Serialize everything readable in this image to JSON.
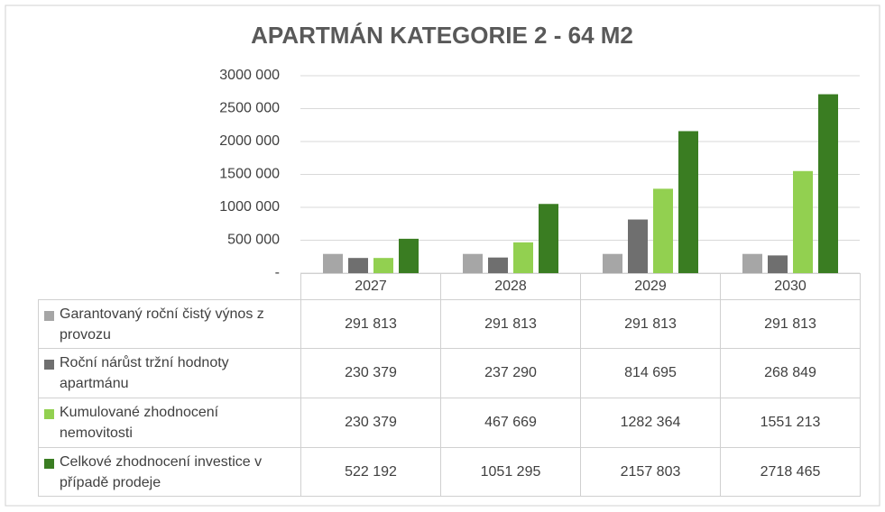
{
  "chart_data": {
    "type": "bar",
    "title": "APARTMÁN KATEGORIE 2 - 64 M2",
    "categories": [
      "2027",
      "2028",
      "2029",
      "2030"
    ],
    "ylim": [
      0,
      3000000
    ],
    "yticks": [
      {
        "value": 0,
        "label": "-"
      },
      {
        "value": 500000,
        "label": "500 000"
      },
      {
        "value": 1000000,
        "label": "1000 000"
      },
      {
        "value": 1500000,
        "label": "1500 000"
      },
      {
        "value": 2000000,
        "label": "2000 000"
      },
      {
        "value": 2500000,
        "label": "2500 000"
      },
      {
        "value": 3000000,
        "label": "3000 000"
      }
    ],
    "grid": true,
    "series": [
      {
        "name": "Garantovaný roční čistý výnos z provozu",
        "color": "#a6a6a6",
        "values": [
          291813,
          291813,
          291813,
          291813
        ],
        "value_labels": [
          "291 813",
          "291 813",
          "291 813",
          "291 813"
        ]
      },
      {
        "name": "Roční nárůst tržní hodnoty apartmánu",
        "color": "#6f6f6f",
        "values": [
          230379,
          237290,
          814695,
          268849
        ],
        "value_labels": [
          "230 379",
          "237 290",
          "814 695",
          "268 849"
        ]
      },
      {
        "name": "Kumulované zhodnocení nemovitosti",
        "color": "#92d050",
        "values": [
          230379,
          467669,
          1282364,
          1551213
        ],
        "value_labels": [
          "230 379",
          "467 669",
          "1282 364",
          "1551 213"
        ]
      },
      {
        "name": "Celkové zhodnocení investice v případě prodeje",
        "color": "#3a7d22",
        "values": [
          522192,
          1051295,
          2157803,
          2718465
        ],
        "value_labels": [
          "522 192",
          "1051 295",
          "2157 803",
          "2718 465"
        ]
      }
    ]
  }
}
